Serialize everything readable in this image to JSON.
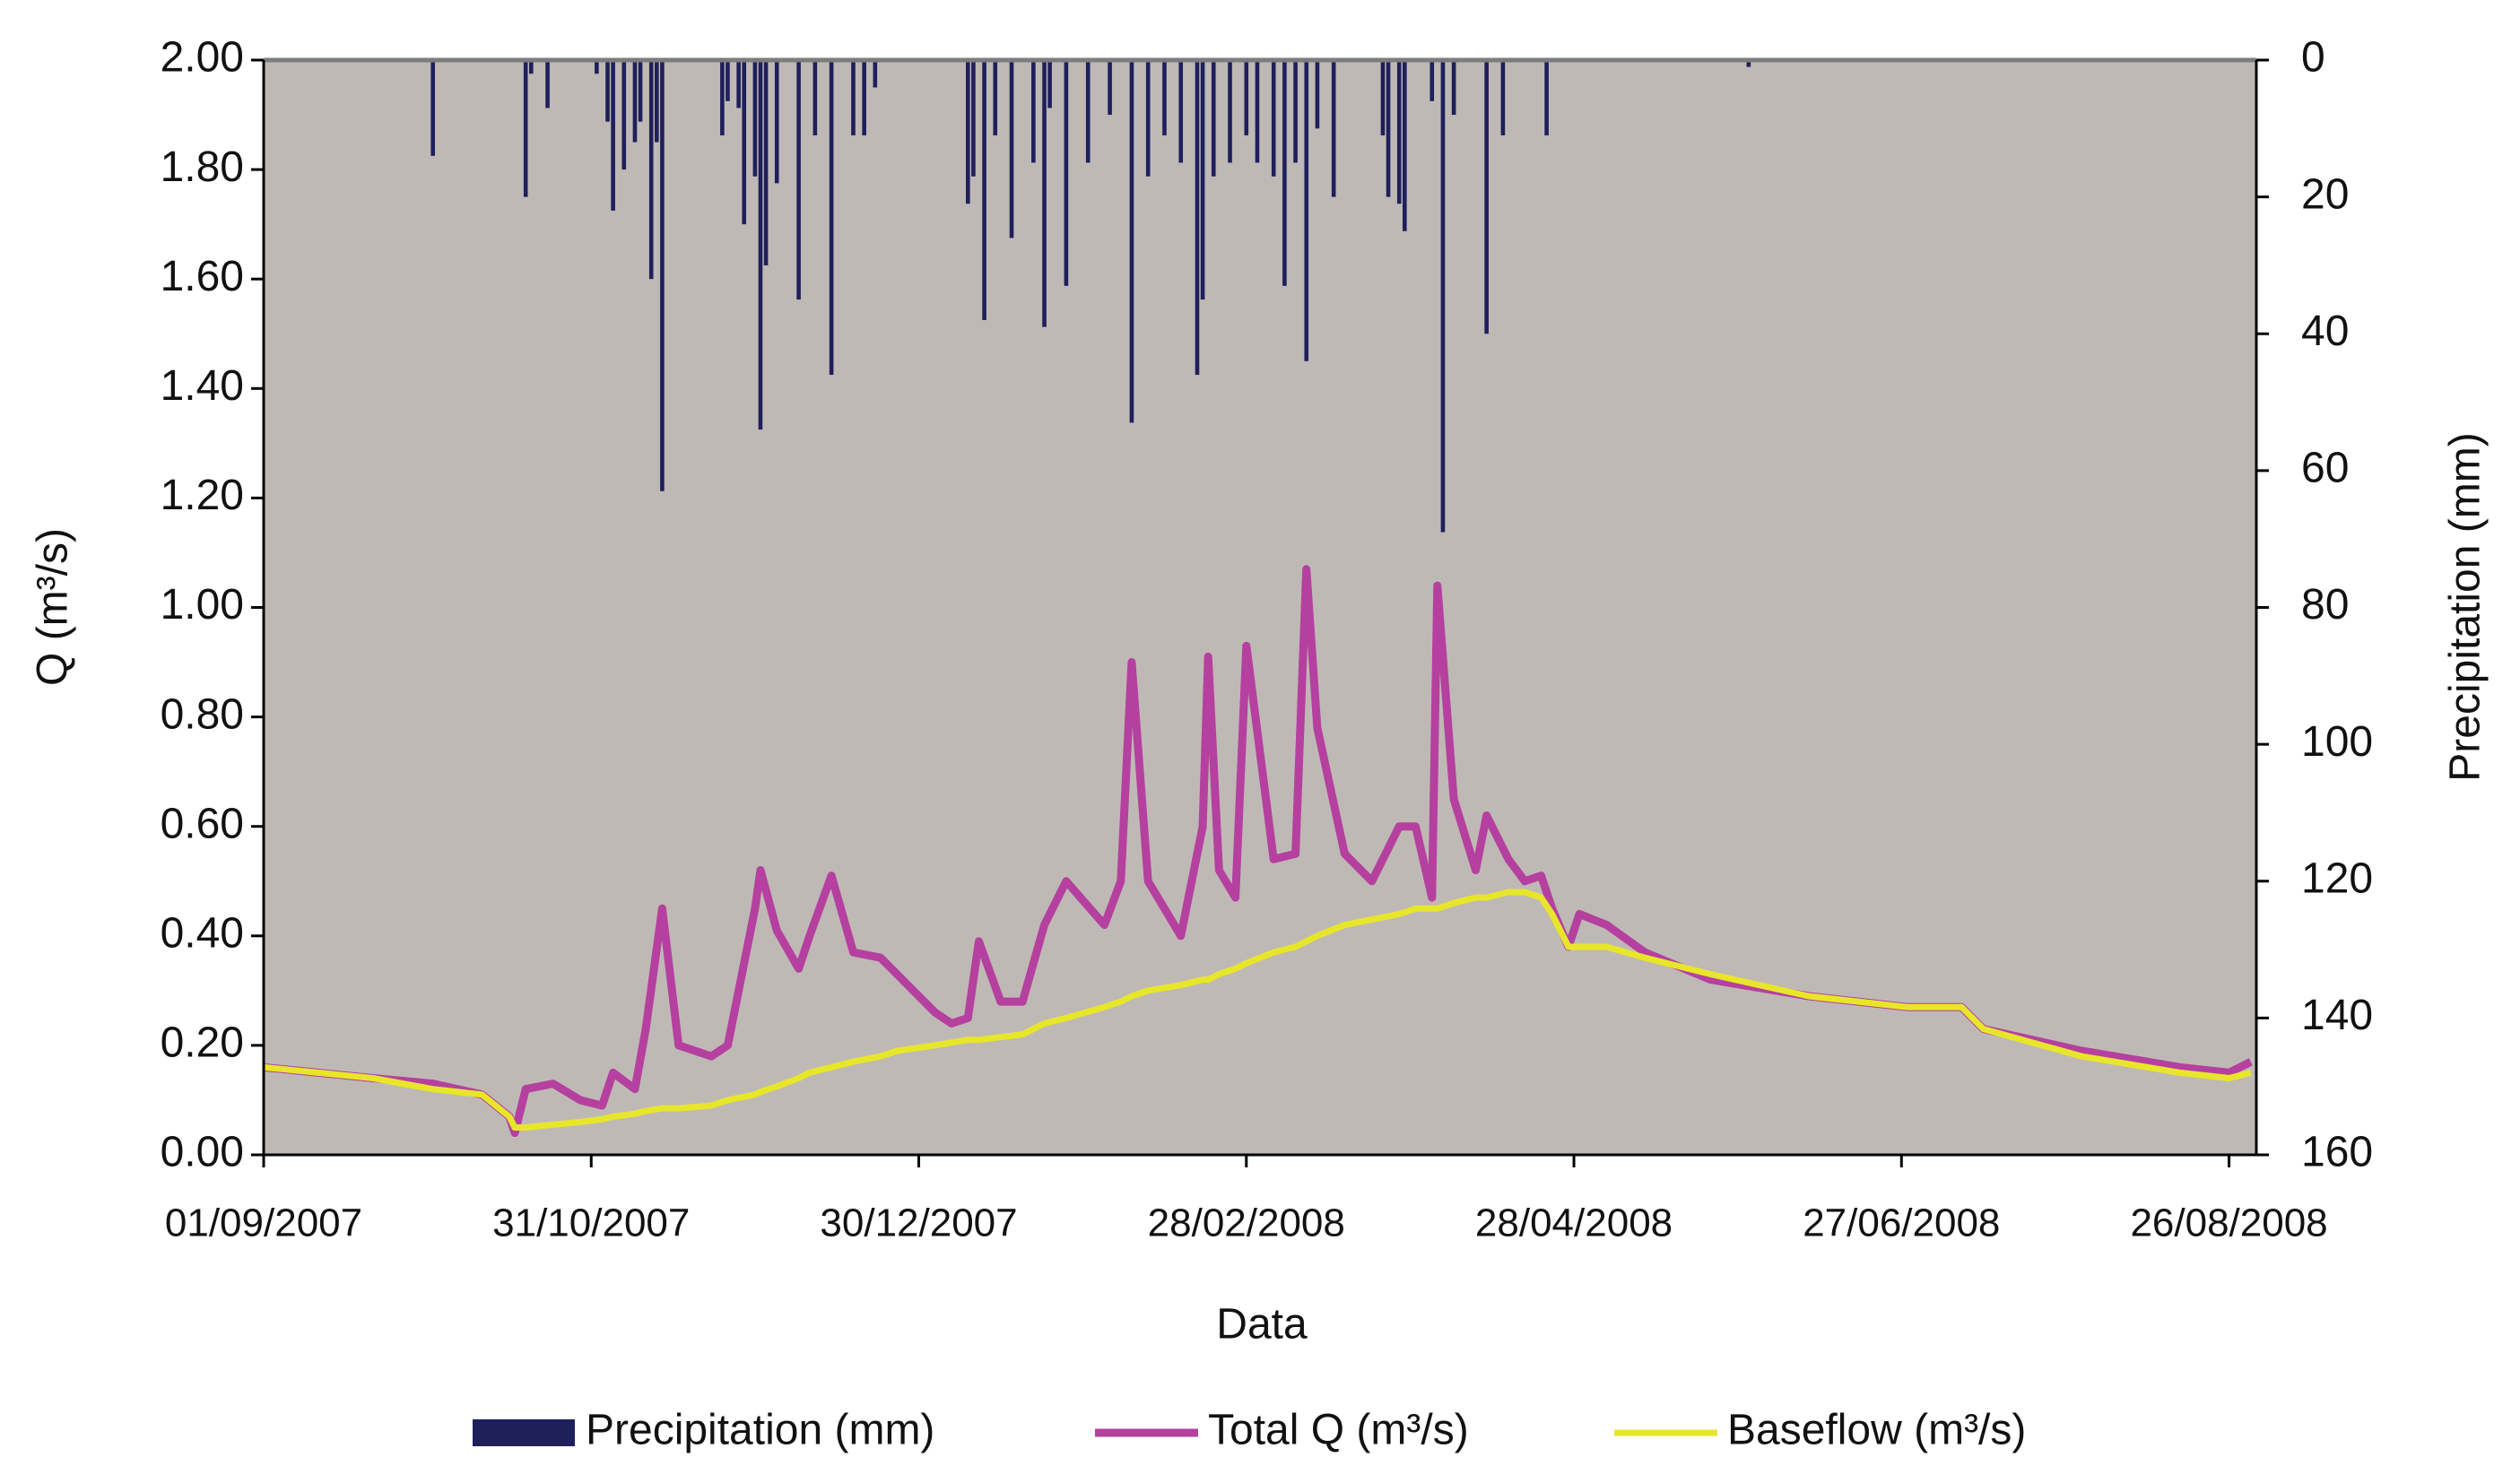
{
  "chart_data": {
    "type": "hydrograph",
    "x_label": "Data",
    "y_label": "Q (m³/s)",
    "y2_label": "Precipitation (mm)",
    "background": "#bfb9b5",
    "xlim": [
      "01/09/2007",
      "31/08/2008"
    ],
    "xticks": [
      "01/09/2007",
      "31/10/2007",
      "30/12/2007",
      "28/02/2008",
      "28/04/2008",
      "27/06/2008",
      "26/08/2008"
    ],
    "ylim": [
      0,
      2
    ],
    "yticks": [
      {
        "value": 0,
        "label": "0.00"
      },
      {
        "value": 0.2,
        "label": "0.20"
      },
      {
        "value": 0.4,
        "label": "0.40"
      },
      {
        "value": 0.6,
        "label": "0.60"
      },
      {
        "value": 0.8,
        "label": "0.80"
      },
      {
        "value": 1,
        "label": "1.00"
      },
      {
        "value": 1.2,
        "label": "1.20"
      },
      {
        "value": 1.4,
        "label": "1.40"
      },
      {
        "value": 1.6,
        "label": "1.60"
      },
      {
        "value": 1.8,
        "label": "1.80"
      },
      {
        "value": 2,
        "label": "2.00"
      }
    ],
    "y2lim": [
      0,
      160
    ],
    "y2ticks": [
      0,
      20,
      40,
      60,
      80,
      100,
      120,
      140,
      160
    ],
    "y2_inverted": true,
    "legend": "bottom",
    "x": [
      "01/09/2007",
      "11/09/2007",
      "21/09/2007",
      "02/10/2007",
      "11/10/2007",
      "16/10/2007",
      "17/10/2007",
      "19/10/2007",
      "24/10/2007",
      "29/10/2007",
      "02/11/2007",
      "04/11/2007",
      "08/11/2007",
      "10/11/2007",
      "13/11/2007",
      "16/11/2007",
      "22/11/2007",
      "25/11/2007",
      "30/11/2007",
      "01/12/2007",
      "04/12/2007",
      "08/12/2007",
      "10/12/2007",
      "14/12/2007",
      "18/12/2007",
      "23/12/2007",
      "26/12/2007",
      "02/01/2008",
      "05/01/2008",
      "08/01/2008",
      "10/01/2008",
      "14/01/2008",
      "18/01/2008",
      "22/01/2008",
      "26/01/2008",
      "02/02/2008",
      "05/02/2008",
      "07/02/2008",
      "10/02/2008",
      "16/02/2008",
      "20/02/2008",
      "21/02/2008",
      "23/02/2008",
      "26/02/2008",
      "28/02/2008",
      "04/03/2008",
      "08/03/2008",
      "10/03/2008",
      "12/03/2008",
      "17/03/2008",
      "22/03/2008",
      "27/03/2008",
      "30/03/2008",
      "02/04/2008",
      "03/04/2008",
      "06/04/2008",
      "10/04/2008",
      "12/04/2008",
      "16/04/2008",
      "19/04/2008",
      "22/04/2008",
      "24/04/2008",
      "27/04/2008",
      "29/04/2008",
      "04/05/2008",
      "11/05/2008",
      "23/05/2008",
      "10/06/2008",
      "28/06/2008",
      "08/07/2008",
      "12/07/2008",
      "30/07/2008",
      "17/08/2008",
      "26/08/2008",
      "30/08/2008"
    ],
    "series": [
      {
        "name": "Precipitation (mm)",
        "color": "#1f1f5c",
        "axis": "y2",
        "kind": "bar",
        "x": [
          "02/10/2007",
          "19/10/2007",
          "20/10/2007",
          "23/10/2007",
          "01/11/2007",
          "03/11/2007",
          "04/11/2007",
          "06/11/2007",
          "08/11/2007",
          "09/11/2007",
          "11/11/2007",
          "12/11/2007",
          "13/11/2007",
          "24/11/2007",
          "25/11/2007",
          "27/11/2007",
          "28/11/2007",
          "30/11/2007",
          "01/12/2007",
          "02/12/2007",
          "04/12/2007",
          "08/12/2007",
          "11/12/2007",
          "14/12/2007",
          "18/12/2007",
          "20/12/2007",
          "22/12/2007",
          "08/01/2008",
          "09/01/2008",
          "11/01/2008",
          "13/01/2008",
          "16/01/2008",
          "20/01/2008",
          "22/01/2008",
          "23/01/2008",
          "26/01/2008",
          "30/01/2008",
          "03/02/2008",
          "07/02/2008",
          "10/02/2008",
          "13/02/2008",
          "16/02/2008",
          "19/02/2008",
          "20/02/2008",
          "22/02/2008",
          "25/02/2008",
          "28/02/2008",
          "01/03/2008",
          "04/03/2008",
          "06/03/2008",
          "08/03/2008",
          "10/03/2008",
          "12/03/2008",
          "15/03/2008",
          "24/03/2008",
          "25/03/2008",
          "27/03/2008",
          "28/03/2008",
          "02/04/2008",
          "04/04/2008",
          "06/04/2008",
          "12/04/2008",
          "15/04/2008",
          "23/04/2008",
          "30/05/2008"
        ],
        "values": [
          14,
          20,
          2,
          7,
          2,
          9,
          22,
          16,
          12,
          9,
          32,
          12,
          63,
          11,
          6,
          7,
          24,
          17,
          54,
          30,
          18,
          35,
          11,
          46,
          11,
          11,
          4,
          21,
          17,
          38,
          11,
          26,
          15,
          39,
          7,
          33,
          15,
          8,
          53,
          17,
          11,
          15,
          46,
          35,
          17,
          15,
          11,
          15,
          17,
          33,
          15,
          44,
          10,
          20,
          11,
          20,
          21,
          25,
          6,
          69,
          8,
          40,
          11,
          11,
          1
        ]
      },
      {
        "name": "Total Q (m³/s)",
        "color": "#b5409f",
        "axis": "y",
        "kind": "line",
        "values": [
          0.16,
          0.15,
          0.14,
          0.13,
          0.11,
          0.07,
          0.04,
          0.12,
          0.13,
          0.1,
          0.09,
          0.15,
          0.12,
          0.23,
          0.45,
          0.2,
          0.18,
          0.2,
          0.45,
          0.52,
          0.41,
          0.34,
          0.4,
          0.51,
          0.37,
          0.36,
          0.33,
          0.26,
          0.24,
          0.25,
          0.39,
          0.28,
          0.28,
          0.42,
          0.5,
          0.42,
          0.5,
          0.9,
          0.5,
          0.4,
          0.6,
          0.91,
          0.52,
          0.47,
          0.93,
          0.54,
          0.55,
          1.07,
          0.78,
          0.55,
          0.5,
          0.6,
          0.6,
          0.47,
          1.04,
          0.65,
          0.52,
          0.62,
          0.54,
          0.5,
          0.51,
          0.45,
          0.38,
          0.44,
          0.42,
          0.37,
          0.32,
          0.29,
          0.27,
          0.27,
          0.23,
          0.19,
          0.16,
          0.15,
          0.17
        ]
      },
      {
        "name": "Baseflow (m³/s)",
        "color": "#e8e62a",
        "axis": "y",
        "kind": "line",
        "values": [
          0.16,
          0.15,
          0.14,
          0.12,
          0.11,
          0.07,
          0.05,
          0.05,
          0.055,
          0.06,
          0.065,
          0.07,
          0.075,
          0.08,
          0.085,
          0.085,
          0.09,
          0.1,
          0.11,
          0.115,
          0.125,
          0.14,
          0.15,
          0.16,
          0.17,
          0.18,
          0.19,
          0.2,
          0.205,
          0.21,
          0.21,
          0.215,
          0.22,
          0.24,
          0.25,
          0.27,
          0.28,
          0.29,
          0.3,
          0.31,
          0.32,
          0.32,
          0.33,
          0.34,
          0.35,
          0.37,
          0.38,
          0.39,
          0.4,
          0.42,
          0.43,
          0.44,
          0.45,
          0.45,
          0.45,
          0.46,
          0.47,
          0.47,
          0.48,
          0.48,
          0.47,
          0.44,
          0.38,
          0.38,
          0.38,
          0.36,
          0.33,
          0.29,
          0.27,
          0.27,
          0.23,
          0.18,
          0.15,
          0.14,
          0.15
        ]
      }
    ]
  }
}
